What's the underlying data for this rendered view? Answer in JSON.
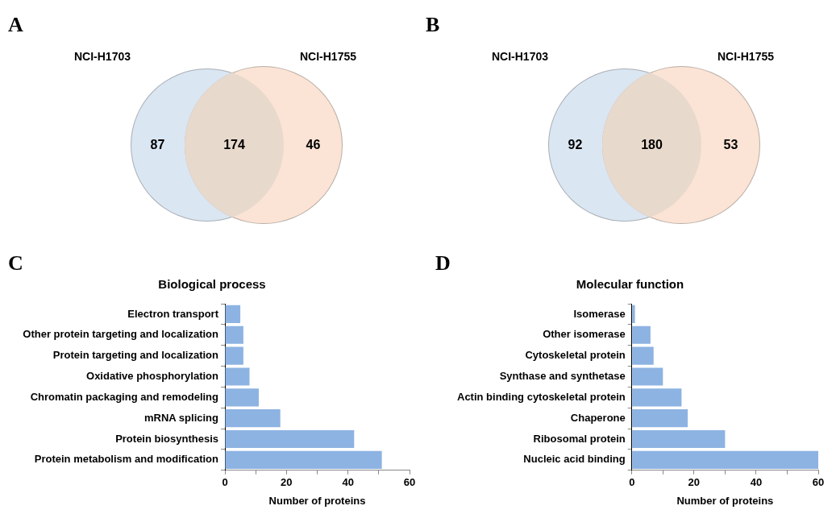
{
  "chart_data": [
    {
      "type": "other",
      "annotations": [
        "A",
        "NCI-H1703",
        "NCI-H1755"
      ],
      "categories": [
        null,
        null,
        null
      ],
      "values": [
        87,
        174,
        46
      ],
      "colors": [
        "#dbe6f3",
        "#e8d9cd",
        "#fbe4d5"
      ],
      "data_labels": true
    },
    {
      "type": "other",
      "annotations": [
        "B",
        "NCI-H1703",
        "NCI-H1755"
      ],
      "categories": [
        null,
        null,
        null
      ],
      "values": [
        92,
        180,
        53
      ],
      "colors": [
        "#dbe6f3",
        "#e8d9cd",
        "#fbe4d5"
      ],
      "data_labels": true
    },
    {
      "type": "bar",
      "orientation": "horizontal",
      "title": "Biological process",
      "xlabel": "Number of proteins",
      "annotations": [
        "C"
      ],
      "categories": [
        "Electron transport",
        "Other protein targeting and localization",
        "Protein targeting and localization",
        "Oxidative phosphorylation",
        "Chromatin packaging and remodeling",
        "mRNA splicing",
        "Protein biosynthesis",
        "Protein metabolism and modification"
      ],
      "values": [
        5,
        6,
        6,
        8,
        11,
        18,
        42,
        51
      ],
      "color": "#8db3e2",
      "xlim": [
        0,
        60
      ],
      "xticks": [
        0,
        {
          "value": 10,
          "label": null
        },
        20,
        {
          "value": 30,
          "label": null
        },
        40,
        {
          "value": 50,
          "label": null
        },
        60
      ],
      "grid": false,
      "legend": false
    },
    {
      "type": "bar",
      "orientation": "horizontal",
      "title": "Molecular function",
      "xlabel": "Number of proteins",
      "annotations": [
        "D"
      ],
      "categories": [
        "Isomerase",
        "Other isomerase",
        "Cytoskeletal protein",
        "Synthase and synthetase",
        "Actin binding cytoskeletal protein",
        "Chaperone",
        "Ribosomal protein",
        "Nucleic acid binding"
      ],
      "values": [
        1,
        6,
        7,
        10,
        16,
        18,
        30,
        60
      ],
      "color": "#8db3e2",
      "xlim": [
        0,
        60
      ],
      "xticks": [
        0,
        {
          "value": 10,
          "label": null
        },
        20,
        {
          "value": 30,
          "label": null
        },
        40,
        {
          "value": 50,
          "label": null
        },
        60
      ],
      "grid": false,
      "legend": false
    }
  ]
}
